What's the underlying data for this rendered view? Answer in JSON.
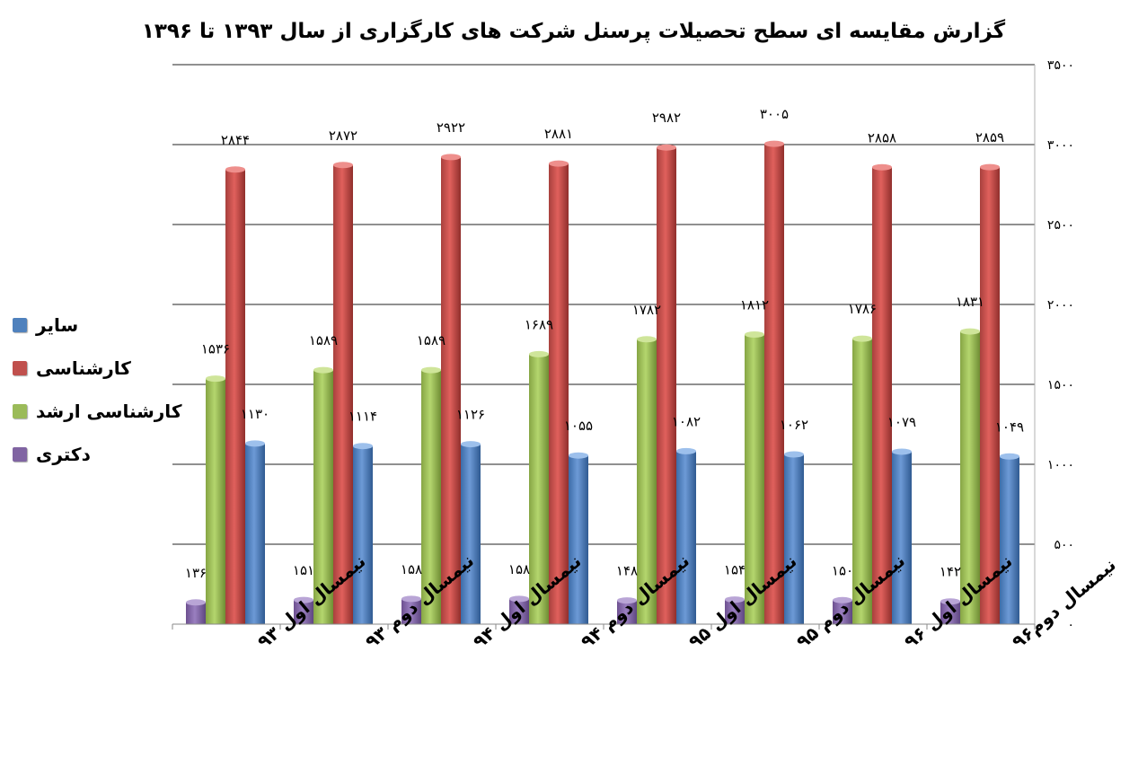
{
  "chart_data": {
    "type": "bar",
    "title": "گزارش مقایسه ای سطح تحصیلات پرسنل شرکت های کارگزاری از سال ۱۳۹۳ تا ۱۳۹۶",
    "categories": [
      "نیمسال اول ۹۳",
      "نیمسال دوم ۹۳",
      "نیمسال اول ۹۴",
      "نیمسال دوم ۹۴",
      "نیمسال اول ۹۵",
      "نیمسال دوم ۹۵",
      "نیمسال اول ۹۶",
      "نیمسال دوم۹۶"
    ],
    "series": [
      {
        "name": "دکتری",
        "color": "#8064a2",
        "values": [
          136,
          151,
          158,
          158,
          148,
          154,
          150,
          142
        ],
        "labels": [
          "۱۳۶",
          "۱۵۱",
          "۱۵۸",
          "۱۵۸",
          "۱۴۸",
          "۱۵۴",
          "۱۵۰",
          "۱۴۲"
        ]
      },
      {
        "name": "کارشناسی ارشد",
        "color": "#9bbb59",
        "values": [
          1536,
          1589,
          1589,
          1689,
          1782,
          1812,
          1786,
          1831
        ],
        "labels": [
          "۱۵۳۶",
          "۱۵۸۹",
          "۱۵۸۹",
          "۱۶۸۹",
          "۱۷۸۲",
          "۱۸۱۲",
          "۱۷۸۶",
          "۱۸۳۱"
        ]
      },
      {
        "name": "کارشناسی",
        "color": "#c0504d",
        "values": [
          2844,
          2872,
          2922,
          2881,
          2982,
          3005,
          2858,
          2859
        ],
        "labels": [
          "۲۸۴۴",
          "۲۸۷۲",
          "۲۹۲۲",
          "۲۸۸۱",
          "۲۹۸۲",
          "۳۰۰۵",
          "۲۸۵۸",
          "۲۸۵۹"
        ]
      },
      {
        "name": "سایر",
        "color": "#4f81bd",
        "values": [
          1130,
          1114,
          1126,
          1055,
          1082,
          1062,
          1079,
          1049
        ],
        "labels": [
          "۱۱۳۰",
          "۱۱۱۴",
          "۱۱۲۶",
          "۱۰۵۵",
          "۱۰۸۲",
          "۱۰۶۲",
          "۱۰۷۹",
          "۱۰۴۹"
        ]
      }
    ],
    "legend_order": [
      "سایر",
      "کارشناسی",
      "کارشناسی ارشد",
      "دکتری"
    ],
    "ylim": [
      0,
      3500
    ],
    "yticks": [
      0,
      500,
      1000,
      1500,
      2000,
      2500,
      3000,
      3500
    ],
    "ytick_labels": [
      "۰",
      "۵۰۰",
      "۱۰۰۰",
      "۱۵۰۰",
      "۲۰۰۰",
      "۲۵۰۰",
      "۳۰۰۰",
      "۳۵۰۰"
    ],
    "y_axis_side": "right",
    "grid": true,
    "legend_position": "left",
    "xlabel": "",
    "ylabel": ""
  }
}
